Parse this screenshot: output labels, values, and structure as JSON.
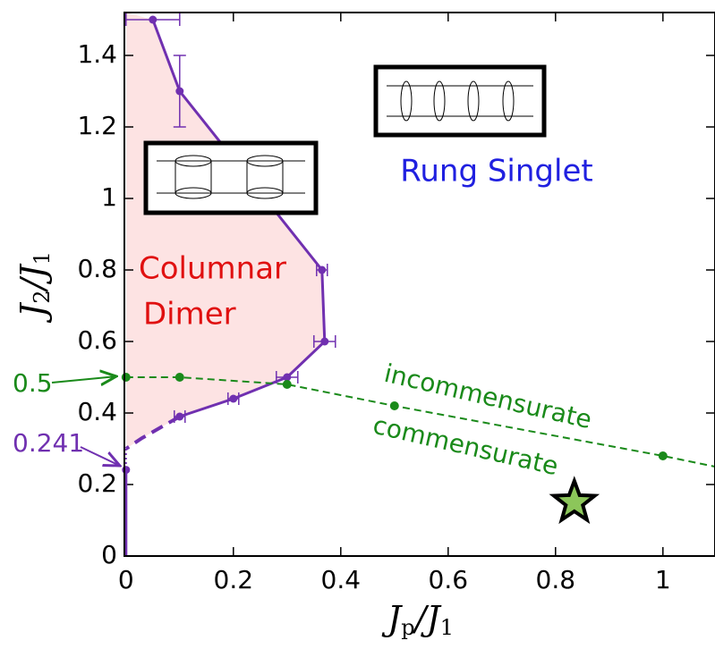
{
  "chart_data": {
    "type": "phase-diagram",
    "x_label_parts": [
      "J",
      "p",
      "/J",
      "1"
    ],
    "y_label_parts": [
      "J",
      "2",
      "/J",
      "1"
    ],
    "xlim": [
      -0.003,
      1.097
    ],
    "ylim": [
      0,
      1.52
    ],
    "xticks": [
      0,
      0.2,
      0.4,
      0.6,
      0.8,
      1
    ],
    "yticks": [
      0,
      0.2,
      0.4,
      0.6,
      0.8,
      1,
      1.2,
      1.4
    ],
    "boundary": {
      "color": "#7030b0",
      "fill": "#fde3e3",
      "x": [
        0.05,
        0.1,
        0.365,
        0.37,
        0.3,
        0.2,
        0.1
      ],
      "values": [
        1.5,
        1.3,
        0.8,
        0.6,
        0.5,
        0.44,
        0.39
      ],
      "xerr": [
        0.05,
        null,
        0.01,
        0.02,
        0.02,
        0.01,
        0.01
      ],
      "yerr": [
        null,
        0.1,
        null,
        null,
        null,
        null,
        null
      ]
    },
    "boundary_dashed": {
      "x": [
        0.1,
        0.03,
        0
      ],
      "values": [
        0.39,
        0.33,
        0.3
      ]
    },
    "boundary_low": {
      "x": [
        0,
        0
      ],
      "values": [
        0.241,
        0
      ]
    },
    "crossover": {
      "color": "#1a8a1a",
      "x": [
        0,
        0.1,
        0.3,
        0.5,
        1,
        1.097
      ],
      "values": [
        0.5,
        0.5,
        0.48,
        0.42,
        0.28,
        0.25
      ],
      "markers": [
        true,
        true,
        true,
        true,
        true,
        false
      ]
    },
    "star": {
      "x": 0.835,
      "y": 0.15,
      "color": "#8cc65a"
    },
    "annotations": {
      "rung_singlet": "Rung Singlet",
      "columnar_1": "Columnar",
      "columnar_2": "Dimer",
      "incommensurate": "incommensurate",
      "commensurate": "commensurate",
      "mark_05": "0.5",
      "mark_0241": "0.241"
    }
  }
}
